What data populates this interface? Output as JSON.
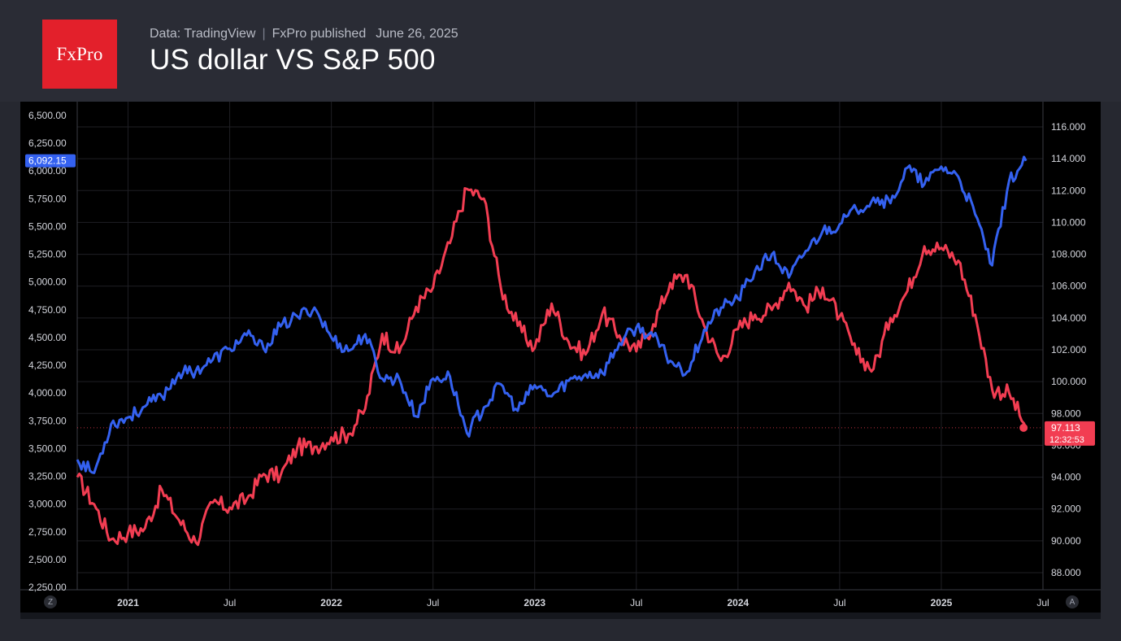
{
  "header": {
    "logo_text": "FxPro",
    "source": "Data: TradingView",
    "publisher": "FxPro published",
    "date": "June 26, 2025",
    "title": "US dollar VS S&P 500"
  },
  "controls": {
    "left_button": "Z",
    "right_button": "A"
  },
  "colors": {
    "background": "#000000",
    "sp500_line": "#3461f0",
    "dxy_line": "#f23d52",
    "grid": "#1f1f24",
    "brand": "#e3202b"
  },
  "chart_data": {
    "type": "line",
    "title": "US dollar VS S&P 500",
    "grid": true,
    "x_ticks": [
      "2021",
      "Jul",
      "2022",
      "Jul",
      "2023",
      "Jul",
      "2024",
      "Jul",
      "2025",
      "Jul"
    ],
    "x_range": [
      "2020-10",
      "2025-07"
    ],
    "left_axis": {
      "ticks": [
        "6,500.00",
        "6,250.00",
        "6,000.00",
        "5,750.00",
        "5,500.00",
        "5,250.00",
        "5,000.00",
        "4,750.00",
        "4,500.00",
        "4,250.00",
        "4,000.00",
        "3,750.00",
        "3,500.00",
        "3,250.00",
        "3,000.00",
        "2,750.00",
        "2,500.00",
        "2,250.00"
      ],
      "range": [
        2250,
        6500
      ]
    },
    "right_axis": {
      "ticks": [
        "116.000",
        "114.000",
        "112.000",
        "110.000",
        "108.000",
        "106.000",
        "104.000",
        "102.000",
        "100.000",
        "98.000",
        "96.000",
        "94.000",
        "92.000",
        "90.000",
        "88.000"
      ],
      "range": [
        88,
        116
      ]
    },
    "price_labels": {
      "sp500_last": "6,092.15",
      "dxy_last": "97.113",
      "countdown": "12:32:53"
    },
    "series": [
      {
        "axis": "left",
        "points": [
          [
            "2020-10",
            3400
          ],
          [
            "2020-11",
            3280
          ],
          [
            "2020-12",
            3720
          ],
          [
            "2021-01",
            3780
          ],
          [
            "2021-02",
            3880
          ],
          [
            "2021-03",
            3970
          ],
          [
            "2021-04",
            4180
          ],
          [
            "2021-05",
            4200
          ],
          [
            "2021-06",
            4300
          ],
          [
            "2021-07",
            4400
          ],
          [
            "2021-08",
            4520
          ],
          [
            "2021-09",
            4400
          ],
          [
            "2021-10",
            4600
          ],
          [
            "2021-11",
            4690
          ],
          [
            "2021-12",
            4770
          ],
          [
            "2022-01",
            4500
          ],
          [
            "2022-02",
            4380
          ],
          [
            "2022-03",
            4530
          ],
          [
            "2022-04",
            4130
          ],
          [
            "2022-05",
            4130
          ],
          [
            "2022-06",
            3790
          ],
          [
            "2022-07",
            4130
          ],
          [
            "2022-08",
            4150
          ],
          [
            "2022-09",
            3640
          ],
          [
            "2022-10",
            3870
          ],
          [
            "2022-11",
            4080
          ],
          [
            "2022-12",
            3840
          ],
          [
            "2023-01",
            4070
          ],
          [
            "2023-02",
            3970
          ],
          [
            "2023-03",
            4110
          ],
          [
            "2023-04",
            4170
          ],
          [
            "2023-05",
            4180
          ],
          [
            "2023-06",
            4450
          ],
          [
            "2023-07",
            4590
          ],
          [
            "2023-08",
            4510
          ],
          [
            "2023-09",
            4290
          ],
          [
            "2023-10",
            4190
          ],
          [
            "2023-11",
            4570
          ],
          [
            "2023-12",
            4770
          ],
          [
            "2024-01",
            4850
          ],
          [
            "2024-02",
            5100
          ],
          [
            "2024-03",
            5250
          ],
          [
            "2024-04",
            5040
          ],
          [
            "2024-05",
            5280
          ],
          [
            "2024-06",
            5460
          ],
          [
            "2024-07",
            5520
          ],
          [
            "2024-08",
            5650
          ],
          [
            "2024-09",
            5760
          ],
          [
            "2024-10",
            5710
          ],
          [
            "2024-11",
            6030
          ],
          [
            "2024-12",
            5880
          ],
          [
            "2025-01",
            6040
          ],
          [
            "2025-02",
            5950
          ],
          [
            "2025-03",
            5610
          ],
          [
            "2025-04",
            5150
          ],
          [
            "2025-05",
            5910
          ],
          [
            "2025-06",
            6092
          ]
        ]
      },
      {
        "axis": "right",
        "points": [
          [
            "2020-10",
            94.0
          ],
          [
            "2020-11",
            92.3
          ],
          [
            "2020-12",
            90.1
          ],
          [
            "2021-01",
            90.5
          ],
          [
            "2021-02",
            90.8
          ],
          [
            "2021-03",
            93.2
          ],
          [
            "2021-04",
            91.3
          ],
          [
            "2021-05",
            89.9
          ],
          [
            "2021-06",
            92.4
          ],
          [
            "2021-07",
            92.1
          ],
          [
            "2021-08",
            92.6
          ],
          [
            "2021-09",
            94.2
          ],
          [
            "2021-10",
            94.1
          ],
          [
            "2021-11",
            95.9
          ],
          [
            "2021-12",
            95.9
          ],
          [
            "2022-01",
            96.5
          ],
          [
            "2022-02",
            96.7
          ],
          [
            "2022-03",
            98.3
          ],
          [
            "2022-04",
            103.0
          ],
          [
            "2022-05",
            101.8
          ],
          [
            "2022-06",
            104.7
          ],
          [
            "2022-07",
            105.9
          ],
          [
            "2022-08",
            108.7
          ],
          [
            "2022-09",
            112.1
          ],
          [
            "2022-10",
            111.5
          ],
          [
            "2022-11",
            105.9
          ],
          [
            "2022-12",
            103.5
          ],
          [
            "2023-01",
            102.1
          ],
          [
            "2023-02",
            104.9
          ],
          [
            "2023-03",
            102.5
          ],
          [
            "2023-04",
            101.7
          ],
          [
            "2023-05",
            104.3
          ],
          [
            "2023-06",
            102.9
          ],
          [
            "2023-07",
            101.9
          ],
          [
            "2023-08",
            103.6
          ],
          [
            "2023-09",
            106.2
          ],
          [
            "2023-10",
            106.7
          ],
          [
            "2023-11",
            103.5
          ],
          [
            "2023-12",
            101.3
          ],
          [
            "2024-01",
            103.3
          ],
          [
            "2024-02",
            104.2
          ],
          [
            "2024-03",
            104.5
          ],
          [
            "2024-04",
            106.2
          ],
          [
            "2024-05",
            104.7
          ],
          [
            "2024-06",
            105.9
          ],
          [
            "2024-07",
            104.1
          ],
          [
            "2024-08",
            101.7
          ],
          [
            "2024-09",
            100.8
          ],
          [
            "2024-10",
            104.0
          ],
          [
            "2024-11",
            105.7
          ],
          [
            "2024-12",
            108.5
          ],
          [
            "2025-01",
            108.4
          ],
          [
            "2025-02",
            107.6
          ],
          [
            "2025-03",
            104.2
          ],
          [
            "2025-04",
            99.5
          ],
          [
            "2025-05",
            99.3
          ],
          [
            "2025-06",
            97.1
          ]
        ]
      }
    ]
  }
}
